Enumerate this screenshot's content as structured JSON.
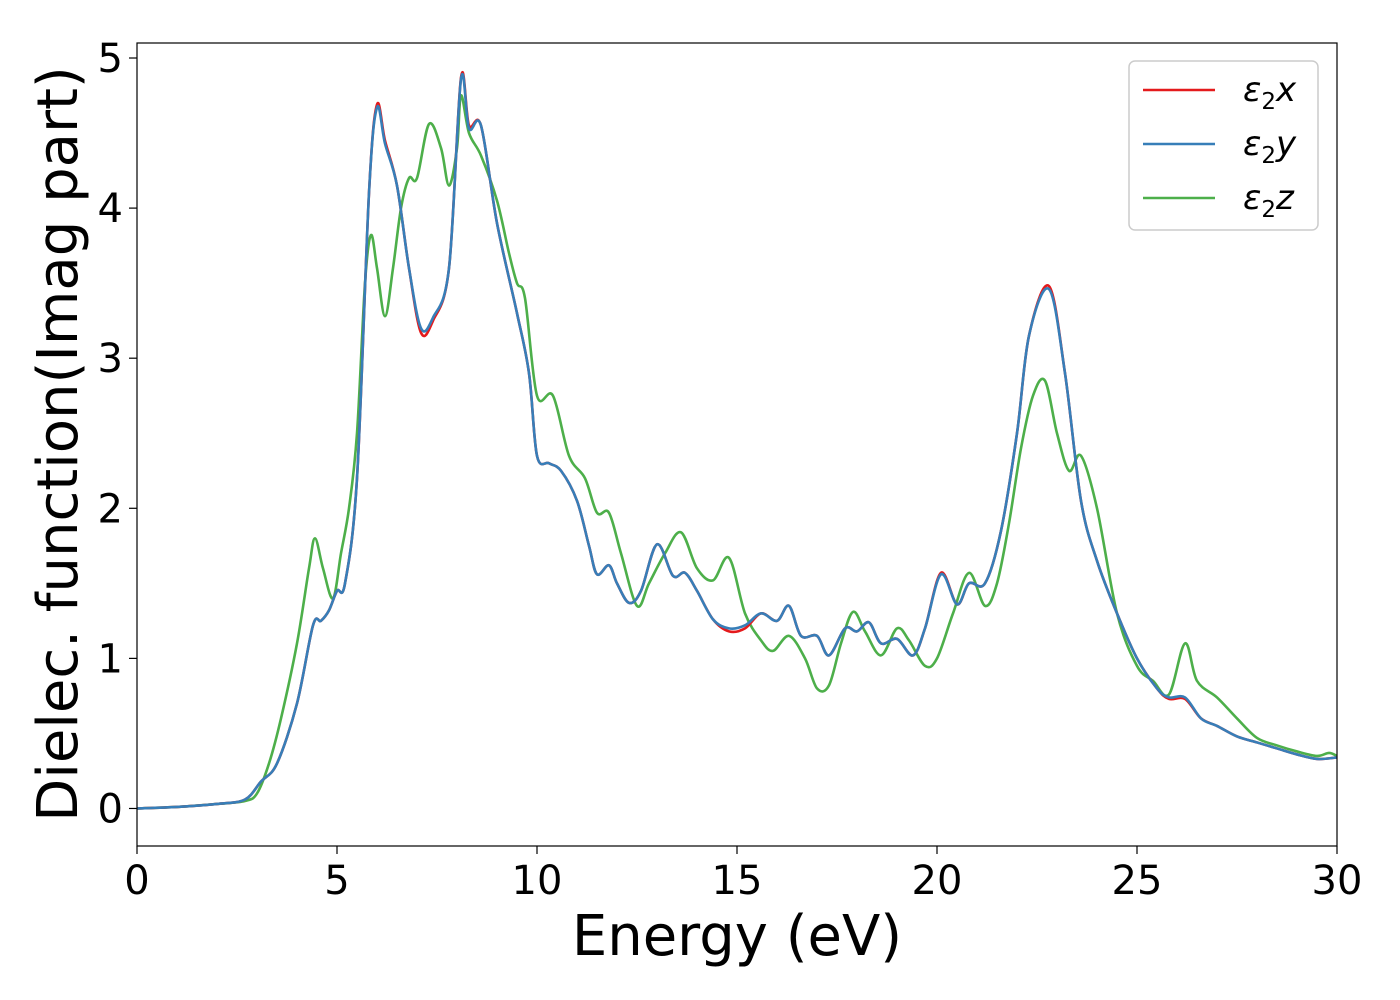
{
  "chart_data": {
    "type": "line",
    "title": "",
    "xlabel": "Energy (eV)",
    "ylabel": "Dielec. function(Imag part)",
    "xlim": [
      0,
      30
    ],
    "ylim": [
      -0.25,
      5.1
    ],
    "xticks": [
      0,
      5,
      10,
      15,
      20,
      25,
      30
    ],
    "yticks": [
      0,
      1,
      2,
      3,
      4,
      5
    ],
    "grid": false,
    "legend_position": "top-right",
    "series": [
      {
        "name": "ε2x",
        "legend_base": "ε",
        "legend_sub": "2",
        "legend_var": "x",
        "color": "#e41a1c",
        "points": [
          [
            0,
            0
          ],
          [
            1,
            0.01
          ],
          [
            2,
            0.03
          ],
          [
            2.7,
            0.06
          ],
          [
            3.1,
            0.18
          ],
          [
            3.5,
            0.3
          ],
          [
            4,
            0.7
          ],
          [
            4.4,
            1.22
          ],
          [
            4.6,
            1.25
          ],
          [
            4.8,
            1.32
          ],
          [
            5,
            1.45
          ],
          [
            5.2,
            1.5
          ],
          [
            5.5,
            2.2
          ],
          [
            5.8,
            4.1
          ],
          [
            6,
            4.69
          ],
          [
            6.2,
            4.45
          ],
          [
            6.5,
            4.15
          ],
          [
            6.8,
            3.6
          ],
          [
            7.1,
            3.17
          ],
          [
            7.4,
            3.25
          ],
          [
            7.8,
            3.6
          ],
          [
            8.1,
            4.87
          ],
          [
            8.3,
            4.55
          ],
          [
            8.6,
            4.55
          ],
          [
            9,
            3.9
          ],
          [
            9.5,
            3.3
          ],
          [
            9.8,
            2.9
          ],
          [
            10,
            2.35
          ],
          [
            10.3,
            2.3
          ],
          [
            10.6,
            2.25
          ],
          [
            11,
            2.05
          ],
          [
            11.3,
            1.75
          ],
          [
            11.5,
            1.56
          ],
          [
            11.8,
            1.62
          ],
          [
            12,
            1.5
          ],
          [
            12.3,
            1.37
          ],
          [
            12.6,
            1.45
          ],
          [
            13,
            1.76
          ],
          [
            13.4,
            1.55
          ],
          [
            13.7,
            1.57
          ],
          [
            14,
            1.45
          ],
          [
            14.4,
            1.26
          ],
          [
            14.8,
            1.18
          ],
          [
            15.2,
            1.2
          ],
          [
            15.6,
            1.3
          ],
          [
            16,
            1.25
          ],
          [
            16.3,
            1.35
          ],
          [
            16.6,
            1.15
          ],
          [
            17,
            1.15
          ],
          [
            17.3,
            1.02
          ],
          [
            17.7,
            1.2
          ],
          [
            18,
            1.18
          ],
          [
            18.3,
            1.24
          ],
          [
            18.6,
            1.1
          ],
          [
            19,
            1.13
          ],
          [
            19.4,
            1.02
          ],
          [
            19.7,
            1.2
          ],
          [
            20.1,
            1.57
          ],
          [
            20.5,
            1.36
          ],
          [
            20.8,
            1.5
          ],
          [
            21.2,
            1.5
          ],
          [
            21.6,
            1.85
          ],
          [
            22,
            2.5
          ],
          [
            22.3,
            3.15
          ],
          [
            22.8,
            3.48
          ],
          [
            23.2,
            2.9
          ],
          [
            23.6,
            2.05
          ],
          [
            24,
            1.65
          ],
          [
            24.5,
            1.3
          ],
          [
            25,
            1
          ],
          [
            25.5,
            0.8
          ],
          [
            25.8,
            0.73
          ],
          [
            26.2,
            0.73
          ],
          [
            26.6,
            0.6
          ],
          [
            27,
            0.55
          ],
          [
            27.5,
            0.48
          ],
          [
            28,
            0.44
          ],
          [
            28.5,
            0.4
          ],
          [
            29,
            0.36
          ],
          [
            29.5,
            0.33
          ],
          [
            30,
            0.34
          ]
        ]
      },
      {
        "name": "ε2y",
        "legend_base": "ε",
        "legend_sub": "2",
        "legend_var": "y",
        "color": "#377eb8",
        "points": [
          [
            0,
            0
          ],
          [
            1,
            0.01
          ],
          [
            2,
            0.03
          ],
          [
            2.7,
            0.06
          ],
          [
            3.1,
            0.18
          ],
          [
            3.5,
            0.3
          ],
          [
            4,
            0.7
          ],
          [
            4.4,
            1.22
          ],
          [
            4.6,
            1.25
          ],
          [
            4.8,
            1.32
          ],
          [
            5,
            1.45
          ],
          [
            5.2,
            1.5
          ],
          [
            5.5,
            2.2
          ],
          [
            5.8,
            4.1
          ],
          [
            6,
            4.67
          ],
          [
            6.2,
            4.43
          ],
          [
            6.5,
            4.15
          ],
          [
            6.8,
            3.6
          ],
          [
            7.1,
            3.2
          ],
          [
            7.4,
            3.27
          ],
          [
            7.8,
            3.6
          ],
          [
            8.1,
            4.86
          ],
          [
            8.3,
            4.53
          ],
          [
            8.6,
            4.55
          ],
          [
            9,
            3.9
          ],
          [
            9.5,
            3.3
          ],
          [
            9.8,
            2.9
          ],
          [
            10,
            2.35
          ],
          [
            10.3,
            2.3
          ],
          [
            10.6,
            2.25
          ],
          [
            11,
            2.05
          ],
          [
            11.3,
            1.75
          ],
          [
            11.5,
            1.56
          ],
          [
            11.8,
            1.62
          ],
          [
            12,
            1.5
          ],
          [
            12.3,
            1.37
          ],
          [
            12.6,
            1.45
          ],
          [
            13,
            1.76
          ],
          [
            13.4,
            1.55
          ],
          [
            13.7,
            1.57
          ],
          [
            14,
            1.45
          ],
          [
            14.4,
            1.26
          ],
          [
            14.8,
            1.2
          ],
          [
            15.2,
            1.22
          ],
          [
            15.6,
            1.3
          ],
          [
            16,
            1.25
          ],
          [
            16.3,
            1.35
          ],
          [
            16.6,
            1.15
          ],
          [
            17,
            1.15
          ],
          [
            17.3,
            1.02
          ],
          [
            17.7,
            1.2
          ],
          [
            18,
            1.18
          ],
          [
            18.3,
            1.24
          ],
          [
            18.6,
            1.1
          ],
          [
            19,
            1.13
          ],
          [
            19.4,
            1.02
          ],
          [
            19.7,
            1.2
          ],
          [
            20.1,
            1.56
          ],
          [
            20.5,
            1.36
          ],
          [
            20.8,
            1.5
          ],
          [
            21.2,
            1.5
          ],
          [
            21.6,
            1.85
          ],
          [
            22,
            2.5
          ],
          [
            22.3,
            3.15
          ],
          [
            22.8,
            3.46
          ],
          [
            23.2,
            2.9
          ],
          [
            23.6,
            2.05
          ],
          [
            24,
            1.65
          ],
          [
            24.5,
            1.3
          ],
          [
            25,
            1
          ],
          [
            25.5,
            0.8
          ],
          [
            25.8,
            0.74
          ],
          [
            26.2,
            0.74
          ],
          [
            26.6,
            0.6
          ],
          [
            27,
            0.55
          ],
          [
            27.5,
            0.48
          ],
          [
            28,
            0.44
          ],
          [
            28.5,
            0.4
          ],
          [
            29,
            0.36
          ],
          [
            29.5,
            0.33
          ],
          [
            30,
            0.34
          ]
        ]
      },
      {
        "name": "ε2z",
        "legend_base": "ε",
        "legend_sub": "2",
        "legend_var": "z",
        "color": "#4daf4a",
        "points": [
          [
            0,
            0
          ],
          [
            1,
            0.01
          ],
          [
            2,
            0.03
          ],
          [
            2.7,
            0.05
          ],
          [
            3,
            0.1
          ],
          [
            3.3,
            0.3
          ],
          [
            3.6,
            0.6
          ],
          [
            4,
            1.1
          ],
          [
            4.3,
            1.6
          ],
          [
            4.45,
            1.8
          ],
          [
            4.65,
            1.6
          ],
          [
            4.9,
            1.4
          ],
          [
            5.1,
            1.7
          ],
          [
            5.3,
            2
          ],
          [
            5.5,
            2.5
          ],
          [
            5.7,
            3.5
          ],
          [
            5.85,
            3.82
          ],
          [
            6,
            3.6
          ],
          [
            6.2,
            3.28
          ],
          [
            6.4,
            3.6
          ],
          [
            6.6,
            4
          ],
          [
            6.8,
            4.2
          ],
          [
            7,
            4.2
          ],
          [
            7.3,
            4.56
          ],
          [
            7.6,
            4.4
          ],
          [
            7.8,
            4.15
          ],
          [
            8,
            4.4
          ],
          [
            8.1,
            4.75
          ],
          [
            8.3,
            4.5
          ],
          [
            8.6,
            4.35
          ],
          [
            9,
            4.05
          ],
          [
            9.3,
            3.7
          ],
          [
            9.5,
            3.5
          ],
          [
            9.7,
            3.4
          ],
          [
            10,
            2.75
          ],
          [
            10.4,
            2.75
          ],
          [
            10.8,
            2.35
          ],
          [
            11.2,
            2.2
          ],
          [
            11.5,
            1.97
          ],
          [
            11.8,
            1.97
          ],
          [
            12.1,
            1.7
          ],
          [
            12.5,
            1.35
          ],
          [
            12.8,
            1.5
          ],
          [
            13.2,
            1.7
          ],
          [
            13.6,
            1.84
          ],
          [
            14,
            1.6
          ],
          [
            14.4,
            1.52
          ],
          [
            14.8,
            1.67
          ],
          [
            15.2,
            1.3
          ],
          [
            15.6,
            1.12
          ],
          [
            15.9,
            1.05
          ],
          [
            16.3,
            1.15
          ],
          [
            16.7,
            1
          ],
          [
            17,
            0.8
          ],
          [
            17.3,
            0.82
          ],
          [
            17.6,
            1.1
          ],
          [
            17.9,
            1.31
          ],
          [
            18.2,
            1.18
          ],
          [
            18.6,
            1.02
          ],
          [
            19,
            1.2
          ],
          [
            19.3,
            1.12
          ],
          [
            19.7,
            0.95
          ],
          [
            20,
            1
          ],
          [
            20.4,
            1.3
          ],
          [
            20.8,
            1.57
          ],
          [
            21.2,
            1.35
          ],
          [
            21.5,
            1.5
          ],
          [
            21.8,
            1.9
          ],
          [
            22.1,
            2.4
          ],
          [
            22.4,
            2.75
          ],
          [
            22.7,
            2.85
          ],
          [
            23,
            2.5
          ],
          [
            23.3,
            2.25
          ],
          [
            23.6,
            2.35
          ],
          [
            24,
            2
          ],
          [
            24.5,
            1.3
          ],
          [
            25,
            0.95
          ],
          [
            25.4,
            0.85
          ],
          [
            25.8,
            0.76
          ],
          [
            26.2,
            1.1
          ],
          [
            26.5,
            0.85
          ],
          [
            27,
            0.74
          ],
          [
            27.5,
            0.6
          ],
          [
            28,
            0.47
          ],
          [
            28.5,
            0.42
          ],
          [
            29,
            0.38
          ],
          [
            29.5,
            0.35
          ],
          [
            29.8,
            0.37
          ],
          [
            30,
            0.35
          ]
        ]
      }
    ]
  }
}
